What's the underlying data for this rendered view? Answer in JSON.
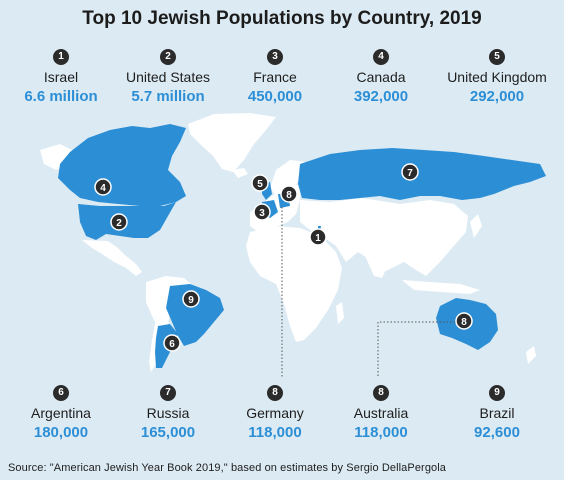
{
  "title": "Top 10 Jewish Populations by Country, 2019",
  "top_row": [
    {
      "rank": "1",
      "country": "Israel",
      "value": "6.6 million"
    },
    {
      "rank": "2",
      "country": "United States",
      "value": "5.7 million"
    },
    {
      "rank": "3",
      "country": "France",
      "value": "450,000"
    },
    {
      "rank": "4",
      "country": "Canada",
      "value": "392,000"
    },
    {
      "rank": "5",
      "country": "United Kingdom",
      "value": "292,000"
    }
  ],
  "bottom_row": [
    {
      "rank": "6",
      "country": "Argentina",
      "value": "180,000"
    },
    {
      "rank": "7",
      "country": "Russia",
      "value": "165,000"
    },
    {
      "rank": "8",
      "country": "Germany",
      "value": "118,000"
    },
    {
      "rank": "8",
      "country": "Australia",
      "value": "118,000"
    },
    {
      "rank": "9",
      "country": "Brazil",
      "value": "92,600"
    }
  ],
  "map_markers": [
    {
      "label": "1",
      "country": "Israel"
    },
    {
      "label": "2",
      "country": "United States"
    },
    {
      "label": "3",
      "country": "France"
    },
    {
      "label": "4",
      "country": "Canada"
    },
    {
      "label": "5",
      "country": "United Kingdom"
    },
    {
      "label": "6",
      "country": "Argentina"
    },
    {
      "label": "7",
      "country": "Russia"
    },
    {
      "label": "8",
      "country": "Germany"
    },
    {
      "label": "8",
      "country": "Australia"
    },
    {
      "label": "9",
      "country": "Brazil"
    }
  ],
  "source": "Source:  \"American Jewish Year Book 2019,\" based on estimates by Sergio DellaPergola",
  "colors": {
    "ocean": "#dceaf3",
    "highlight": "#2c8fd6",
    "land": "#ffffff",
    "badge": "#2b2b2b",
    "value_text": "#2c8fd6"
  }
}
